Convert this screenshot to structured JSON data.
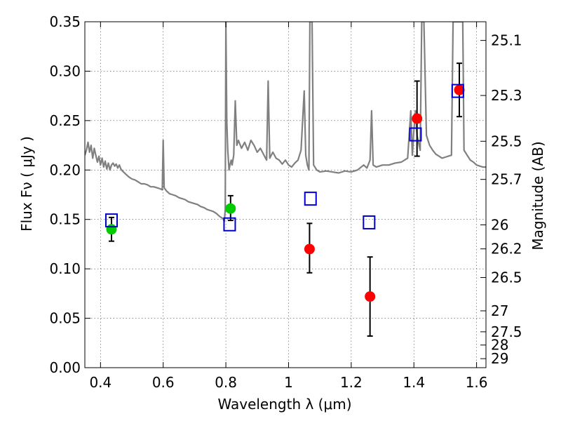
{
  "chart_data": {
    "type": "scatter",
    "xlabel": "Wavelength  λ (μm)",
    "ylabel": "Flux  Fν  ( μJy )",
    "ylabel_right": "Magnitude (AB)",
    "xlim": [
      0.35,
      1.63
    ],
    "ylim": [
      0.0,
      0.35
    ],
    "grid": true,
    "x_ticks": [
      0.4,
      0.6,
      0.8,
      1.0,
      1.2,
      1.4,
      1.6
    ],
    "x_tick_labels": [
      "0.4",
      "0.6",
      "0.8",
      "1",
      "1.2",
      "1.4",
      "1.6"
    ],
    "y_ticks": [
      0.0,
      0.05,
      0.1,
      0.15,
      0.2,
      0.25,
      0.3,
      0.35
    ],
    "y_tick_labels": [
      "0.00",
      "0.05",
      "0.10",
      "0.15",
      "0.20",
      "0.25",
      "0.30",
      "0.35"
    ],
    "right_ticks": [
      {
        "label": "25.1",
        "flux": 0.3311
      },
      {
        "label": "25.3",
        "flux": 0.2754
      },
      {
        "label": "25.5",
        "flux": 0.2291
      },
      {
        "label": "25.7",
        "flux": 0.1905
      },
      {
        "label": "26",
        "flux": 0.1445
      },
      {
        "label": "26.2",
        "flux": 0.1202
      },
      {
        "label": "26.5",
        "flux": 0.0912
      },
      {
        "label": "27",
        "flux": 0.0575
      },
      {
        "label": "27.5",
        "flux": 0.0363
      },
      {
        "label": "28",
        "flux": 0.0229
      },
      {
        "label": "29",
        "flux": 0.0091
      }
    ],
    "colors": {
      "spectrum": "#808080",
      "green_points": "#00cc00",
      "red_points": "#ff0000",
      "model_squares": "#0000cc",
      "error_bars": "#000000"
    },
    "series": [
      {
        "kind": "spectrum",
        "points": [
          [
            0.35,
            0.215
          ],
          [
            0.355,
            0.22
          ],
          [
            0.36,
            0.228
          ],
          [
            0.365,
            0.218
          ],
          [
            0.37,
            0.225
          ],
          [
            0.375,
            0.212
          ],
          [
            0.38,
            0.222
          ],
          [
            0.385,
            0.215
          ],
          [
            0.39,
            0.208
          ],
          [
            0.395,
            0.214
          ],
          [
            0.4,
            0.205
          ],
          [
            0.405,
            0.212
          ],
          [
            0.41,
            0.203
          ],
          [
            0.415,
            0.209
          ],
          [
            0.42,
            0.201
          ],
          [
            0.425,
            0.207
          ],
          [
            0.43,
            0.2
          ],
          [
            0.435,
            0.205
          ],
          [
            0.44,
            0.207
          ],
          [
            0.445,
            0.204
          ],
          [
            0.45,
            0.206
          ],
          [
            0.455,
            0.202
          ],
          [
            0.46,
            0.205
          ],
          [
            0.465,
            0.201
          ],
          [
            0.47,
            0.199
          ],
          [
            0.48,
            0.196
          ],
          [
            0.49,
            0.193
          ],
          [
            0.5,
            0.191
          ],
          [
            0.51,
            0.19
          ],
          [
            0.52,
            0.188
          ],
          [
            0.53,
            0.186
          ],
          [
            0.54,
            0.186
          ],
          [
            0.55,
            0.185
          ],
          [
            0.56,
            0.183
          ],
          [
            0.57,
            0.183
          ],
          [
            0.58,
            0.182
          ],
          [
            0.59,
            0.181
          ],
          [
            0.597,
            0.18
          ],
          [
            0.6,
            0.23
          ],
          [
            0.603,
            0.182
          ],
          [
            0.61,
            0.179
          ],
          [
            0.62,
            0.176
          ],
          [
            0.63,
            0.175
          ],
          [
            0.64,
            0.174
          ],
          [
            0.65,
            0.172
          ],
          [
            0.66,
            0.171
          ],
          [
            0.67,
            0.17
          ],
          [
            0.68,
            0.168
          ],
          [
            0.69,
            0.167
          ],
          [
            0.7,
            0.166
          ],
          [
            0.71,
            0.165
          ],
          [
            0.72,
            0.163
          ],
          [
            0.73,
            0.162
          ],
          [
            0.74,
            0.16
          ],
          [
            0.75,
            0.159
          ],
          [
            0.76,
            0.158
          ],
          [
            0.77,
            0.156
          ],
          [
            0.78,
            0.153
          ],
          [
            0.79,
            0.151
          ],
          [
            0.795,
            0.148
          ],
          [
            0.798,
            0.16
          ],
          [
            0.8,
            0.35
          ],
          [
            0.803,
            0.25
          ],
          [
            0.806,
            0.22
          ],
          [
            0.81,
            0.2
          ],
          [
            0.813,
            0.205
          ],
          [
            0.817,
            0.21
          ],
          [
            0.82,
            0.205
          ],
          [
            0.825,
            0.215
          ],
          [
            0.83,
            0.27
          ],
          [
            0.835,
            0.225
          ],
          [
            0.84,
            0.23
          ],
          [
            0.85,
            0.222
          ],
          [
            0.86,
            0.228
          ],
          [
            0.87,
            0.22
          ],
          [
            0.88,
            0.23
          ],
          [
            0.89,
            0.225
          ],
          [
            0.9,
            0.218
          ],
          [
            0.91,
            0.222
          ],
          [
            0.92,
            0.216
          ],
          [
            0.93,
            0.21
          ],
          [
            0.935,
            0.29
          ],
          [
            0.94,
            0.212
          ],
          [
            0.95,
            0.218
          ],
          [
            0.96,
            0.212
          ],
          [
            0.97,
            0.21
          ],
          [
            0.98,
            0.206
          ],
          [
            0.99,
            0.21
          ],
          [
            1.0,
            0.205
          ],
          [
            1.01,
            0.203
          ],
          [
            1.02,
            0.207
          ],
          [
            1.03,
            0.21
          ],
          [
            1.04,
            0.22
          ],
          [
            1.05,
            0.28
          ],
          [
            1.055,
            0.215
          ],
          [
            1.06,
            0.205
          ],
          [
            1.065,
            0.2
          ],
          [
            1.068,
            0.35
          ],
          [
            1.075,
            0.35
          ],
          [
            1.08,
            0.205
          ],
          [
            1.09,
            0.2
          ],
          [
            1.1,
            0.198
          ],
          [
            1.12,
            0.199
          ],
          [
            1.14,
            0.198
          ],
          [
            1.16,
            0.197
          ],
          [
            1.18,
            0.199
          ],
          [
            1.2,
            0.198
          ],
          [
            1.22,
            0.2
          ],
          [
            1.24,
            0.205
          ],
          [
            1.25,
            0.202
          ],
          [
            1.26,
            0.21
          ],
          [
            1.265,
            0.26
          ],
          [
            1.27,
            0.205
          ],
          [
            1.28,
            0.203
          ],
          [
            1.3,
            0.205
          ],
          [
            1.32,
            0.205
          ],
          [
            1.34,
            0.207
          ],
          [
            1.36,
            0.208
          ],
          [
            1.38,
            0.212
          ],
          [
            1.39,
            0.26
          ],
          [
            1.395,
            0.215
          ],
          [
            1.4,
            0.24
          ],
          [
            1.405,
            0.26
          ],
          [
            1.41,
            0.235
          ],
          [
            1.42,
            0.22
          ],
          [
            1.425,
            0.35
          ],
          [
            1.432,
            0.35
          ],
          [
            1.44,
            0.235
          ],
          [
            1.45,
            0.225
          ],
          [
            1.46,
            0.22
          ],
          [
            1.47,
            0.216
          ],
          [
            1.48,
            0.214
          ],
          [
            1.49,
            0.212
          ],
          [
            1.5,
            0.213
          ],
          [
            1.51,
            0.214
          ],
          [
            1.52,
            0.215
          ],
          [
            1.525,
            0.35
          ],
          [
            1.533,
            0.35
          ],
          [
            1.54,
            0.35
          ],
          [
            1.55,
            0.35
          ],
          [
            1.556,
            0.35
          ],
          [
            1.56,
            0.22
          ],
          [
            1.57,
            0.215
          ],
          [
            1.58,
            0.21
          ],
          [
            1.59,
            0.208
          ],
          [
            1.6,
            0.205
          ],
          [
            1.61,
            0.204
          ],
          [
            1.62,
            0.203
          ],
          [
            1.63,
            0.203
          ]
        ]
      },
      {
        "kind": "observed",
        "color": "green",
        "points": [
          {
            "x": 0.435,
            "y": 0.14,
            "yerr_low": 0.128,
            "yerr_high": 0.152
          },
          {
            "x": 0.815,
            "y": 0.161,
            "yerr_low": 0.149,
            "yerr_high": 0.174
          }
        ]
      },
      {
        "kind": "observed",
        "color": "red",
        "points": [
          {
            "x": 1.067,
            "y": 0.12,
            "yerr_low": 0.096,
            "yerr_high": 0.146
          },
          {
            "x": 1.26,
            "y": 0.072,
            "yerr_low": 0.032,
            "yerr_high": 0.112
          },
          {
            "x": 1.41,
            "y": 0.252,
            "yerr_low": 0.214,
            "yerr_high": 0.29
          },
          {
            "x": 1.545,
            "y": 0.281,
            "yerr_low": 0.254,
            "yerr_high": 0.308
          }
        ]
      },
      {
        "kind": "model",
        "points": [
          {
            "x": 0.435,
            "y": 0.149
          },
          {
            "x": 0.812,
            "y": 0.145
          },
          {
            "x": 1.07,
            "y": 0.171
          },
          {
            "x": 1.257,
            "y": 0.147
          },
          {
            "x": 1.405,
            "y": 0.236
          },
          {
            "x": 1.54,
            "y": 0.28
          }
        ]
      }
    ]
  }
}
